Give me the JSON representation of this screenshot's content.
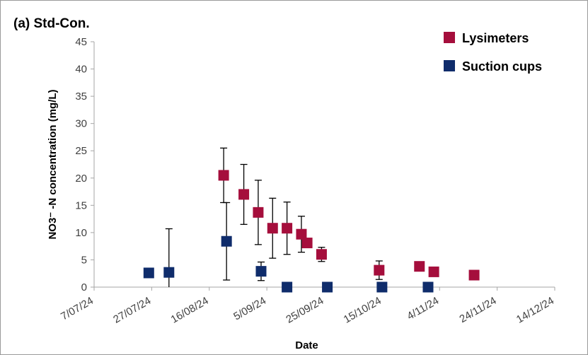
{
  "chart_data": {
    "type": "scatter",
    "title": "(a) Std-Con.",
    "xlabel": "Date",
    "ylabel": "NO3⁻ -N concentration (mg/L)",
    "x_type": "date",
    "xlim": [
      "2024-07-07",
      "2024-12-14"
    ],
    "x_ticks": [
      "2024-07-07",
      "2024-07-27",
      "2024-08-16",
      "2024-09-05",
      "2024-09-25",
      "2024-10-15",
      "2024-11-04",
      "2024-11-24",
      "2024-12-14"
    ],
    "x_tick_labels": [
      "7/07/24",
      "27/07/24",
      "16/08/24",
      "5/09/24",
      "25/09/24",
      "15/10/24",
      "4/11/24",
      "24/11/24",
      "14/12/24"
    ],
    "ylim": [
      0,
      45
    ],
    "y_ticks": [
      0,
      5,
      10,
      15,
      20,
      25,
      30,
      35,
      40,
      45
    ],
    "grid": false,
    "legend_position": "top-right",
    "series": [
      {
        "name": "Lysimeters",
        "color": "#A50E3C",
        "marker": "square",
        "points": [
          {
            "x": "2024-08-21",
            "y": 20.5,
            "err": 5.0
          },
          {
            "x": "2024-08-28",
            "y": 17.0,
            "err": 5.5
          },
          {
            "x": "2024-09-02",
            "y": 13.7,
            "err": 5.9
          },
          {
            "x": "2024-09-07",
            "y": 10.8,
            "err": 5.5
          },
          {
            "x": "2024-09-12",
            "y": 10.8,
            "err": 4.8
          },
          {
            "x": "2024-09-17",
            "y": 9.7,
            "err": 3.3
          },
          {
            "x": "2024-09-19",
            "y": 8.1
          },
          {
            "x": "2024-09-24",
            "y": 6.0,
            "err": 1.3
          },
          {
            "x": "2024-10-14",
            "y": 3.1,
            "err": 1.7
          },
          {
            "x": "2024-10-28",
            "y": 3.8
          },
          {
            "x": "2024-11-02",
            "y": 2.8
          },
          {
            "x": "2024-11-16",
            "y": 2.2
          }
        ]
      },
      {
        "name": "Suction cups",
        "color": "#0F2C6B",
        "marker": "square",
        "points": [
          {
            "x": "2024-07-26",
            "y": 2.6
          },
          {
            "x": "2024-08-02",
            "y": 2.7,
            "err": 8.0
          },
          {
            "x": "2024-08-22",
            "y": 8.4,
            "err": 7.1
          },
          {
            "x": "2024-09-03",
            "y": 2.9,
            "err": 1.7
          },
          {
            "x": "2024-09-12",
            "y": 0
          },
          {
            "x": "2024-09-26",
            "y": 0
          },
          {
            "x": "2024-10-15",
            "y": 0
          },
          {
            "x": "2024-10-31",
            "y": 0
          }
        ]
      }
    ]
  }
}
